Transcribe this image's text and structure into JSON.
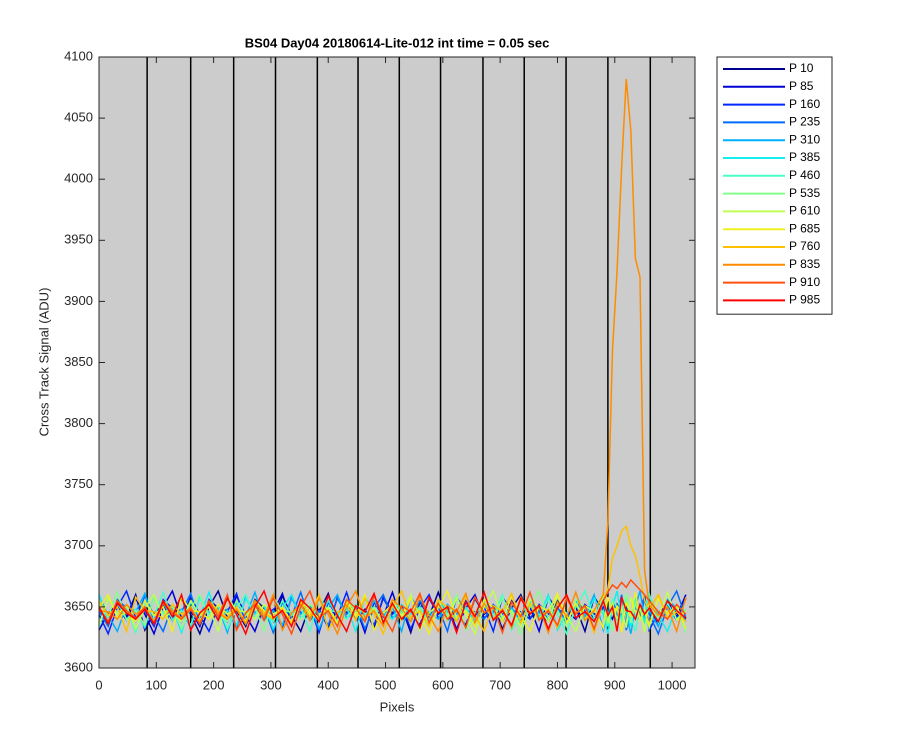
{
  "chart_data": {
    "type": "line",
    "title": "BS04 Day04 20180614-Lite-012 int time = 0.05 sec",
    "xlabel": "Pixels",
    "ylabel": "Cross Track Signal (ADU)",
    "xlim": [
      0,
      1040
    ],
    "ylim": [
      3600,
      4100
    ],
    "xticks": [
      0,
      100,
      200,
      300,
      400,
      500,
      600,
      700,
      800,
      900,
      1000
    ],
    "yticks": [
      3600,
      3650,
      3700,
      3750,
      3800,
      3850,
      3900,
      3950,
      4000,
      4050,
      4100
    ],
    "vertical_lines": [
      84,
      160,
      235,
      308,
      381,
      452,
      524,
      596,
      670,
      742,
      815,
      888,
      962
    ],
    "legend": "outside-upper-right",
    "x": [
      0,
      16,
      32,
      48,
      64,
      80,
      96,
      112,
      128,
      144,
      160,
      176,
      192,
      208,
      224,
      240,
      256,
      272,
      288,
      304,
      320,
      336,
      352,
      368,
      384,
      400,
      416,
      432,
      448,
      464,
      480,
      496,
      512,
      528,
      544,
      560,
      576,
      592,
      608,
      624,
      640,
      656,
      672,
      688,
      704,
      720,
      736,
      752,
      768,
      784,
      800,
      816,
      832,
      848,
      864,
      880,
      888,
      896,
      904,
      912,
      920,
      928,
      936,
      944,
      952,
      960,
      976,
      992,
      1008,
      1024
    ],
    "series": [
      {
        "name": "P 10",
        "color": "#000090",
        "values": [
          3648,
          3636,
          3655,
          3642,
          3660,
          3631,
          3645,
          3652,
          3639,
          3657,
          3644,
          3628,
          3650,
          3663,
          3641,
          3647,
          3634,
          3656,
          3649,
          3638,
          3659,
          3643,
          3630,
          3651,
          3646,
          3661,
          3637,
          3653,
          3640,
          3648,
          3633,
          3658,
          3645,
          3650,
          3629,
          3654,
          3642,
          3662,
          3639,
          3647,
          3635,
          3657,
          3644,
          3651,
          3632,
          3649,
          3660,
          3641,
          3646,
          3638,
          3655,
          3643,
          3650,
          3630,
          3658,
          3647,
          3646,
          3640,
          3652,
          3644,
          3649,
          3638,
          3655,
          3647,
          3641,
          3650,
          3636,
          3653,
          3645,
          3640
        ]
      },
      {
        "name": "P 85",
        "color": "#0000d4",
        "values": [
          3631,
          3645,
          3652,
          3639,
          3657,
          3644,
          3628,
          3650,
          3663,
          3641,
          3647,
          3634,
          3656,
          3649,
          3638,
          3659,
          3643,
          3630,
          3651,
          3646,
          3661,
          3637,
          3653,
          3640,
          3648,
          3633,
          3658,
          3645,
          3650,
          3629,
          3654,
          3642,
          3662,
          3639,
          3647,
          3635,
          3657,
          3644,
          3651,
          3632,
          3649,
          3660,
          3641,
          3646,
          3638,
          3655,
          3643,
          3650,
          3630,
          3658,
          3647,
          3646,
          3640,
          3652,
          3644,
          3649,
          3638,
          3655,
          3647,
          3641,
          3650,
          3636,
          3653,
          3645,
          3640,
          3648,
          3636,
          3655,
          3642,
          3660
        ]
      },
      {
        "name": "P 160",
        "color": "#0028ff",
        "values": [
          3644,
          3628,
          3650,
          3663,
          3641,
          3647,
          3634,
          3656,
          3649,
          3638,
          3659,
          3643,
          3630,
          3651,
          3646,
          3661,
          3637,
          3653,
          3640,
          3648,
          3633,
          3658,
          3645,
          3650,
          3629,
          3654,
          3642,
          3662,
          3639,
          3647,
          3635,
          3657,
          3644,
          3651,
          3632,
          3649,
          3660,
          3641,
          3646,
          3638,
          3655,
          3643,
          3650,
          3630,
          3658,
          3647,
          3646,
          3640,
          3652,
          3644,
          3649,
          3638,
          3655,
          3647,
          3641,
          3650,
          3636,
          3653,
          3645,
          3640,
          3648,
          3636,
          3655,
          3642,
          3660,
          3631,
          3645,
          3652,
          3639,
          3657
        ]
      },
      {
        "name": "P 235",
        "color": "#006cff",
        "values": [
          3647,
          3634,
          3656,
          3649,
          3638,
          3659,
          3643,
          3630,
          3651,
          3646,
          3661,
          3637,
          3653,
          3640,
          3648,
          3633,
          3658,
          3645,
          3650,
          3629,
          3654,
          3642,
          3662,
          3639,
          3647,
          3635,
          3657,
          3644,
          3651,
          3632,
          3649,
          3660,
          3641,
          3646,
          3638,
          3655,
          3643,
          3650,
          3630,
          3658,
          3647,
          3646,
          3640,
          3652,
          3644,
          3649,
          3638,
          3655,
          3647,
          3641,
          3650,
          3636,
          3653,
          3645,
          3640,
          3648,
          3636,
          3655,
          3642,
          3660,
          3631,
          3645,
          3652,
          3639,
          3657,
          3644,
          3628,
          3650,
          3663,
          3641
        ]
      },
      {
        "name": "P 310",
        "color": "#00b0ff",
        "values": [
          3659,
          3643,
          3630,
          3651,
          3646,
          3661,
          3637,
          3653,
          3640,
          3648,
          3633,
          3658,
          3645,
          3650,
          3629,
          3654,
          3642,
          3662,
          3639,
          3647,
          3635,
          3657,
          3644,
          3651,
          3632,
          3649,
          3660,
          3641,
          3646,
          3638,
          3655,
          3643,
          3650,
          3630,
          3658,
          3647,
          3646,
          3640,
          3652,
          3644,
          3649,
          3638,
          3655,
          3647,
          3641,
          3650,
          3636,
          3653,
          3645,
          3640,
          3648,
          3636,
          3655,
          3642,
          3660,
          3631,
          3645,
          3652,
          3639,
          3657,
          3644,
          3628,
          3650,
          3663,
          3641,
          3647,
          3634,
          3656,
          3649,
          3638
        ]
      },
      {
        "name": "P 385",
        "color": "#10f0f0",
        "values": [
          3661,
          3637,
          3653,
          3640,
          3648,
          3633,
          3658,
          3645,
          3650,
          3629,
          3654,
          3642,
          3662,
          3639,
          3647,
          3635,
          3657,
          3644,
          3651,
          3632,
          3649,
          3660,
          3641,
          3646,
          3638,
          3655,
          3643,
          3650,
          3630,
          3658,
          3647,
          3646,
          3640,
          3652,
          3644,
          3649,
          3638,
          3655,
          3647,
          3641,
          3650,
          3636,
          3653,
          3645,
          3640,
          3648,
          3636,
          3655,
          3642,
          3660,
          3631,
          3645,
          3652,
          3639,
          3657,
          3644,
          3628,
          3650,
          3663,
          3641,
          3647,
          3634,
          3656,
          3649,
          3638,
          3659,
          3643,
          3630,
          3651,
          3646
        ]
      },
      {
        "name": "P 460",
        "color": "#48ffc8",
        "values": [
          3633,
          3658,
          3645,
          3650,
          3629,
          3654,
          3642,
          3662,
          3639,
          3647,
          3635,
          3657,
          3644,
          3651,
          3632,
          3649,
          3660,
          3641,
          3646,
          3638,
          3655,
          3643,
          3650,
          3630,
          3658,
          3647,
          3646,
          3640,
          3652,
          3644,
          3649,
          3638,
          3655,
          3647,
          3641,
          3650,
          3636,
          3653,
          3645,
          3640,
          3648,
          3636,
          3655,
          3642,
          3660,
          3631,
          3645,
          3652,
          3639,
          3657,
          3644,
          3628,
          3650,
          3663,
          3641,
          3647,
          3634,
          3656,
          3649,
          3638,
          3659,
          3643,
          3630,
          3651,
          3646,
          3661,
          3637,
          3653,
          3640,
          3648
        ]
      },
      {
        "name": "P 535",
        "color": "#84ff8c",
        "values": [
          3654,
          3642,
          3662,
          3639,
          3647,
          3635,
          3657,
          3644,
          3651,
          3632,
          3649,
          3660,
          3641,
          3646,
          3638,
          3655,
          3643,
          3650,
          3630,
          3658,
          3647,
          3646,
          3640,
          3652,
          3644,
          3649,
          3638,
          3655,
          3647,
          3641,
          3650,
          3636,
          3653,
          3645,
          3640,
          3648,
          3636,
          3655,
          3642,
          3660,
          3631,
          3645,
          3652,
          3639,
          3657,
          3644,
          3628,
          3650,
          3663,
          3641,
          3647,
          3634,
          3656,
          3649,
          3638,
          3659,
          3643,
          3630,
          3651,
          3646,
          3661,
          3637,
          3653,
          3640,
          3648,
          3633,
          3658,
          3645,
          3650,
          3629
        ]
      },
      {
        "name": "P 610",
        "color": "#c0ff50",
        "values": [
          3635,
          3657,
          3644,
          3651,
          3632,
          3649,
          3660,
          3641,
          3646,
          3638,
          3655,
          3643,
          3650,
          3630,
          3658,
          3647,
          3646,
          3640,
          3652,
          3644,
          3649,
          3638,
          3655,
          3647,
          3641,
          3650,
          3636,
          3653,
          3645,
          3640,
          3648,
          3636,
          3655,
          3642,
          3660,
          3631,
          3645,
          3652,
          3639,
          3657,
          3644,
          3628,
          3650,
          3663,
          3641,
          3647,
          3634,
          3656,
          3649,
          3638,
          3659,
          3643,
          3630,
          3651,
          3646,
          3661,
          3637,
          3653,
          3640,
          3648,
          3633,
          3658,
          3645,
          3650,
          3629,
          3654,
          3642,
          3662,
          3639,
          3647
        ]
      },
      {
        "name": "P 685",
        "color": "#f0f020",
        "values": [
          3649,
          3660,
          3641,
          3646,
          3638,
          3655,
          3643,
          3650,
          3630,
          3658,
          3647,
          3646,
          3640,
          3652,
          3644,
          3649,
          3638,
          3655,
          3647,
          3641,
          3650,
          3636,
          3653,
          3645,
          3640,
          3648,
          3636,
          3655,
          3642,
          3660,
          3631,
          3645,
          3652,
          3639,
          3657,
          3644,
          3628,
          3650,
          3663,
          3641,
          3647,
          3634,
          3656,
          3649,
          3638,
          3659,
          3643,
          3630,
          3651,
          3646,
          3661,
          3637,
          3653,
          3640,
          3648,
          3633,
          3658,
          3645,
          3650,
          3629,
          3654,
          3642,
          3662,
          3639,
          3647,
          3635,
          3657,
          3644,
          3651,
          3632
        ]
      },
      {
        "name": "P 760",
        "color": "#ffc000",
        "values": [
          3655,
          3643,
          3650,
          3630,
          3658,
          3647,
          3646,
          3640,
          3652,
          3644,
          3649,
          3638,
          3655,
          3647,
          3641,
          3650,
          3636,
          3653,
          3645,
          3640,
          3648,
          3636,
          3655,
          3642,
          3660,
          3631,
          3645,
          3652,
          3639,
          3657,
          3644,
          3628,
          3650,
          3663,
          3641,
          3647,
          3634,
          3656,
          3649,
          3638,
          3659,
          3643,
          3630,
          3651,
          3646,
          3661,
          3637,
          3653,
          3640,
          3648,
          3633,
          3658,
          3645,
          3650,
          3629,
          3655,
          3665,
          3690,
          3700,
          3712,
          3716,
          3700,
          3692,
          3675,
          3655,
          3648,
          3660,
          3641,
          3646,
          3638
        ]
      },
      {
        "name": "P 835",
        "color": "#ff8c00",
        "values": [
          3647,
          3646,
          3640,
          3652,
          3644,
          3649,
          3638,
          3655,
          3647,
          3641,
          3650,
          3636,
          3653,
          3645,
          3640,
          3648,
          3636,
          3655,
          3642,
          3660,
          3631,
          3645,
          3652,
          3639,
          3657,
          3644,
          3628,
          3650,
          3663,
          3641,
          3647,
          3634,
          3656,
          3649,
          3638,
          3659,
          3643,
          3630,
          3651,
          3646,
          3661,
          3637,
          3653,
          3640,
          3648,
          3633,
          3658,
          3645,
          3650,
          3629,
          3654,
          3642,
          3662,
          3639,
          3647,
          3660,
          3720,
          3860,
          3925,
          4010,
          4082,
          4040,
          3935,
          3920,
          3680,
          3652,
          3643,
          3650,
          3630,
          3658
        ]
      },
      {
        "name": "P 910",
        "color": "#ff5010",
        "values": [
          3649,
          3638,
          3655,
          3647,
          3641,
          3650,
          3636,
          3653,
          3645,
          3640,
          3648,
          3636,
          3655,
          3642,
          3660,
          3631,
          3645,
          3652,
          3639,
          3657,
          3644,
          3628,
          3650,
          3663,
          3641,
          3647,
          3634,
          3656,
          3649,
          3638,
          3659,
          3643,
          3630,
          3651,
          3646,
          3661,
          3637,
          3653,
          3640,
          3648,
          3633,
          3658,
          3645,
          3650,
          3629,
          3654,
          3642,
          3662,
          3639,
          3647,
          3635,
          3657,
          3644,
          3651,
          3632,
          3655,
          3662,
          3668,
          3665,
          3670,
          3666,
          3672,
          3668,
          3664,
          3660,
          3655,
          3646,
          3640,
          3652,
          3644
        ]
      },
      {
        "name": "P 985",
        "color": "#ff0000",
        "values": [
          3650,
          3636,
          3653,
          3645,
          3640,
          3648,
          3636,
          3655,
          3642,
          3660,
          3631,
          3645,
          3652,
          3639,
          3657,
          3644,
          3628,
          3650,
          3663,
          3641,
          3647,
          3634,
          3656,
          3649,
          3638,
          3659,
          3643,
          3630,
          3651,
          3646,
          3661,
          3637,
          3653,
          3640,
          3648,
          3633,
          3658,
          3645,
          3650,
          3629,
          3654,
          3642,
          3662,
          3639,
          3647,
          3635,
          3657,
          3644,
          3651,
          3632,
          3649,
          3660,
          3641,
          3646,
          3638,
          3655,
          3643,
          3650,
          3630,
          3658,
          3647,
          3646,
          3640,
          3652,
          3644,
          3649,
          3638,
          3655,
          3647,
          3641
        ]
      }
    ]
  }
}
